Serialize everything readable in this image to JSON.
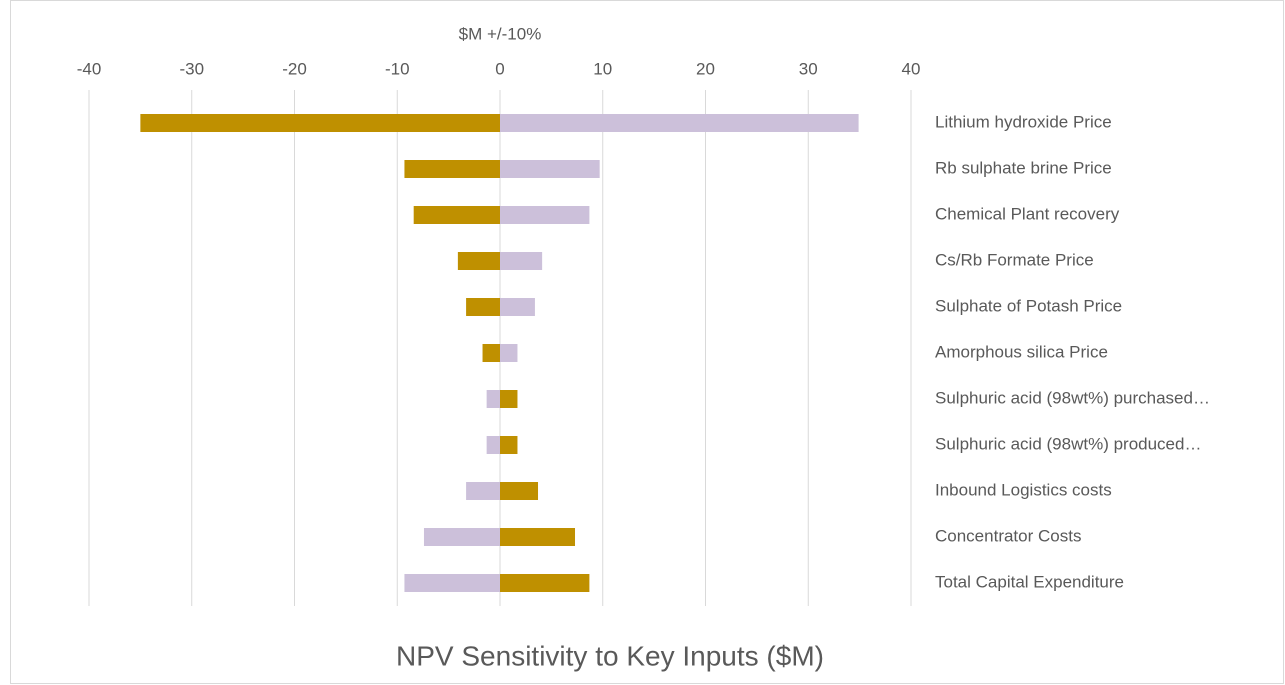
{
  "chart_data": {
    "type": "bar",
    "orientation": "horizontal",
    "title": "NPV Sensitivity to Key Inputs ($M)",
    "xlabel": "$M +/-10%",
    "categories": [
      "Lithium hydroxide Price",
      "Rb sulphate brine  Price",
      "Chemical Plant recovery",
      "Cs/Rb Formate Price",
      "Sulphate of Potash Price",
      "Amorphous silica Price",
      "Sulphuric acid (98wt%) purchased…",
      "Sulphuric acid (98wt%) produced…",
      "Inbound Logistics costs",
      "Concentrator Costs",
      "Total Capital Expenditure"
    ],
    "series": [
      {
        "color": "#bf9000",
        "values": [
          -35,
          -9.3,
          -8.4,
          -4.1,
          -3.3,
          -1.7,
          1.7,
          1.7,
          3.7,
          7.3,
          8.7
        ]
      },
      {
        "color": "#ccc0da",
        "values": [
          34.9,
          9.7,
          8.7,
          4.1,
          3.4,
          1.7,
          -1.3,
          -1.3,
          -3.3,
          -7.4,
          -9.3
        ]
      }
    ],
    "xlim": [
      -40,
      40
    ],
    "xticks": [
      -40,
      -30,
      -20,
      -10,
      0,
      10,
      20,
      30,
      40
    ],
    "grid": true
  }
}
